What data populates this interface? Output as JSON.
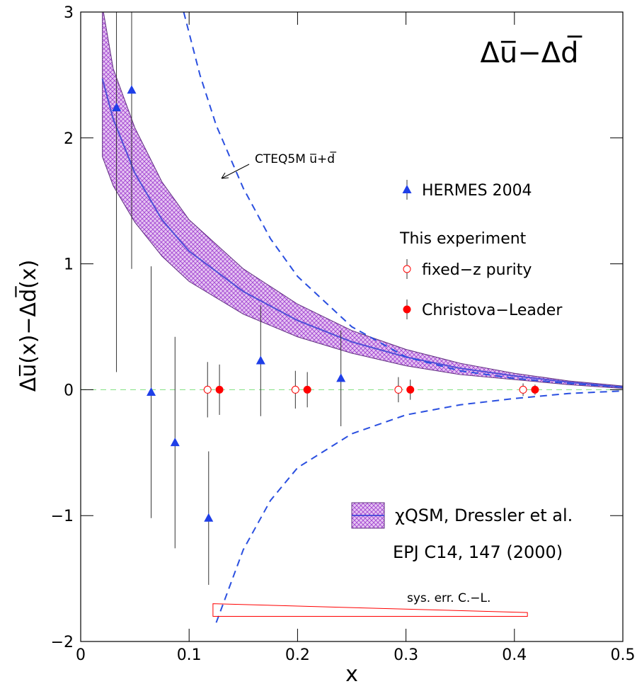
{
  "chart_data": {
    "type": "errorbar",
    "title": "Δu̅−Δd̅",
    "xlabel": "x",
    "ylabel": "Δu̅(x)−Δd̅(x)",
    "xlim": [
      0,
      0.5
    ],
    "ylim": [
      -2,
      3
    ],
    "xticks": [
      0,
      0.1,
      0.2,
      0.3,
      0.4,
      0.5
    ],
    "yticks": [
      {
        "value": -2,
        "label": "−2"
      },
      {
        "value": -1,
        "label": "−1"
      },
      0,
      1,
      2,
      3
    ],
    "series": [
      {
        "name": "HERMES 2004",
        "color": "#1f3fe8",
        "marker": "triangle",
        "x": [
          0.033,
          0.047,
          0.065,
          0.087,
          0.118,
          0.166,
          0.24
        ],
        "values": [
          2.24,
          2.38,
          -0.02,
          -0.42,
          -1.02,
          0.23,
          0.09
        ],
        "errors": [
          2.1,
          1.42,
          1.0,
          0.84,
          0.53,
          0.44,
          0.38
        ]
      },
      {
        "name": "fixed−z purity",
        "color": "#ff0000",
        "marker": "open-circle",
        "x": [
          0.117,
          0.198,
          0.293,
          0.408
        ],
        "values": [
          0,
          0,
          0,
          0
        ],
        "errors": [
          0.22,
          0.15,
          0.1,
          0.05
        ]
      },
      {
        "name": "Christova−Leader",
        "color": "#ff0000",
        "marker": "filled-circle",
        "x": [
          0.128,
          0.209,
          0.304,
          0.419
        ],
        "values": [
          0,
          0,
          0,
          0
        ],
        "errors": [
          0.2,
          0.14,
          0.08,
          0.04
        ]
      }
    ],
    "legend_heading": "This experiment",
    "band": {
      "name": "χQSM,  Dressler et al.",
      "reference": "EPJ C14, 147 (2000)",
      "color": "#9933cc",
      "x": [
        0.02,
        0.03,
        0.05,
        0.075,
        0.1,
        0.15,
        0.2,
        0.25,
        0.3,
        0.35,
        0.4,
        0.45,
        0.5
      ],
      "center": [
        2.47,
        2.15,
        1.72,
        1.35,
        1.1,
        0.78,
        0.55,
        0.38,
        0.26,
        0.17,
        0.11,
        0.06,
        0.02
      ],
      "upper": [
        3.05,
        2.55,
        2.08,
        1.65,
        1.35,
        0.96,
        0.68,
        0.47,
        0.32,
        0.21,
        0.13,
        0.07,
        0.03
      ],
      "lower": [
        1.85,
        1.62,
        1.33,
        1.06,
        0.86,
        0.6,
        0.42,
        0.29,
        0.19,
        0.12,
        0.08,
        0.04,
        0.01
      ]
    },
    "cteq": {
      "label": "CTEQ5M u̅+d̅",
      "color": "#2a4fe0",
      "x": [
        0.095,
        0.11,
        0.125,
        0.15,
        0.175,
        0.2,
        0.25,
        0.3,
        0.35,
        0.4,
        0.45,
        0.5
      ],
      "upper": [
        3.0,
        2.5,
        2.1,
        1.6,
        1.2,
        0.9,
        0.5,
        0.26,
        0.15,
        0.09,
        0.05,
        0.02
      ],
      "lower": [
        null,
        null,
        -1.85,
        -1.27,
        -0.88,
        -0.62,
        -0.35,
        -0.2,
        -0.12,
        -0.07,
        -0.03,
        -0.01
      ]
    },
    "sys_error": {
      "label": "sys. err. C.−L.",
      "color": "#ff0000",
      "x": [
        0.122,
        0.412
      ],
      "values": [
        0.1,
        0.03
      ]
    }
  }
}
